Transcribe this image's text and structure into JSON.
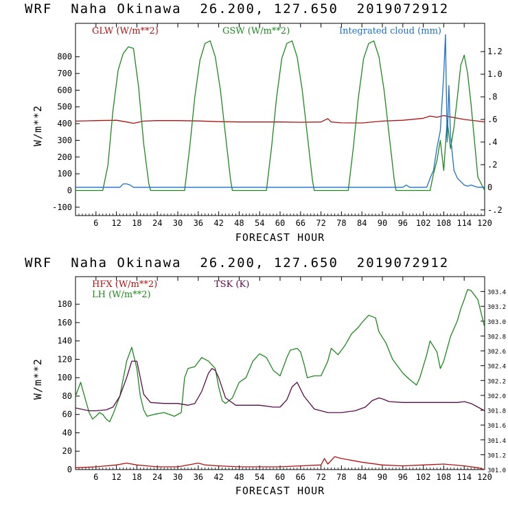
{
  "panels": [
    {
      "title": "WRF  Naha Okinawa  26.200, 127.650  2019072912",
      "ylabel": "W/m**2",
      "xlabel": "FORECAST HOUR",
      "legend": [
        {
          "text": "GLW (W/m**2)",
          "color": "#b01010"
        },
        {
          "text": "GSW (W/m**2)",
          "color": "#1a8a1a"
        },
        {
          "text": "Integrated cloud (mm)",
          "color": "#1a6fd0"
        }
      ]
    },
    {
      "title": "WRF  Naha Okinawa  26.200, 127.650  2019072912",
      "ylabel": "W/m**2",
      "xlabel": "FORECAST HOUR",
      "legend": [
        {
          "text": "HFX (W/m**2)",
          "color": "#b01010"
        },
        {
          "text": "LH  (W/m**2)",
          "color": "#1a8a1a"
        },
        {
          "text": "TSK (K)",
          "color": "#5a0a4a"
        }
      ]
    }
  ],
  "chart_data": [
    {
      "type": "line",
      "title": "WRF  Naha Okinawa  26.200, 127.650  2019072912",
      "xlabel": "FORECAST HOUR",
      "ylabel": "W/m**2",
      "xlim": [
        0,
        120
      ],
      "ylim": [
        -150,
        1000
      ],
      "y2lim": [
        -0.25,
        1.45
      ],
      "x_ticks": [
        6,
        12,
        18,
        24,
        30,
        36,
        42,
        48,
        54,
        60,
        66,
        72,
        78,
        84,
        90,
        96,
        102,
        108,
        114,
        120
      ],
      "y_ticks": [
        -100,
        0,
        100,
        200,
        300,
        400,
        500,
        600,
        700,
        800
      ],
      "y2_ticks": [
        "-.2",
        "0",
        ".2",
        ".4",
        ".6",
        ".8",
        "1.0",
        "1.2"
      ],
      "series": [
        {
          "name": "GLW (W/m**2)",
          "axis": "left",
          "color": "#b01010",
          "x": [
            0,
            6,
            12,
            15,
            17,
            20,
            24,
            30,
            36,
            42,
            48,
            54,
            60,
            66,
            72,
            74,
            75,
            76,
            78,
            84,
            90,
            96,
            102,
            104,
            106,
            108,
            110,
            114,
            118,
            120
          ],
          "y": [
            415,
            418,
            420,
            410,
            402,
            415,
            418,
            418,
            416,
            412,
            410,
            410,
            410,
            408,
            410,
            430,
            410,
            408,
            405,
            404,
            415,
            420,
            432,
            445,
            438,
            448,
            440,
            425,
            415,
            410
          ]
        },
        {
          "name": "GSW (W/m**2)",
          "axis": "left",
          "color": "#1a8a1a",
          "x": [
            0,
            8,
            9.5,
            11,
            12.5,
            14,
            15.5,
            17,
            18.5,
            20,
            21.5,
            22,
            32,
            33.5,
            35,
            36.5,
            38,
            39.5,
            41,
            42.5,
            44,
            45.5,
            46,
            56,
            57.5,
            59,
            60.5,
            62,
            63.5,
            65,
            66.5,
            68,
            69.5,
            70,
            80,
            81.5,
            83,
            84.5,
            86,
            87.5,
            89,
            90.5,
            92,
            93.5,
            94,
            104,
            105,
            106,
            107,
            108,
            109,
            110,
            111,
            112,
            113,
            114,
            115,
            116,
            117,
            118,
            120
          ],
          "y": [
            0,
            0,
            150,
            480,
            720,
            820,
            860,
            850,
            620,
            280,
            40,
            0,
            0,
            260,
            560,
            780,
            880,
            895,
            800,
            600,
            330,
            60,
            0,
            0,
            260,
            560,
            790,
            880,
            895,
            800,
            600,
            330,
            60,
            0,
            0,
            260,
            560,
            790,
            880,
            895,
            800,
            600,
            330,
            60,
            0,
            0,
            100,
            180,
            300,
            120,
            420,
            250,
            380,
            560,
            750,
            810,
            700,
            520,
            300,
            80,
            0
          ]
        },
        {
          "name": "Integrated cloud (mm)",
          "axis": "right",
          "color": "#1a6fd0",
          "x": [
            0,
            13,
            14,
            15,
            16,
            17,
            96,
            97,
            98,
            103,
            104,
            105,
            106,
            107,
            108,
            108.5,
            109,
            109.5,
            110,
            111,
            112,
            113,
            114,
            115,
            116,
            117,
            118,
            120
          ],
          "y": [
            0,
            0,
            0.03,
            0.03,
            0.02,
            0,
            0,
            0.02,
            0,
            0,
            0.08,
            0.15,
            0.35,
            0.5,
            1.0,
            1.35,
            0.4,
            0.9,
            0.45,
            0.15,
            0.08,
            0.05,
            0.02,
            0.01,
            0.02,
            0.01,
            0,
            0
          ]
        }
      ]
    },
    {
      "type": "line",
      "title": "WRF  Naha Okinawa  26.200, 127.650  2019072912",
      "xlabel": "FORECAST HOUR",
      "ylabel": "W/m**2",
      "xlim": [
        0,
        120
      ],
      "ylim": [
        0,
        210
      ],
      "y2lim": [
        301.0,
        303.6
      ],
      "x_ticks": [
        6,
        12,
        18,
        24,
        30,
        36,
        42,
        48,
        54,
        60,
        66,
        72,
        78,
        84,
        90,
        96,
        102,
        108,
        114,
        120
      ],
      "y_ticks": [
        0,
        20,
        40,
        60,
        80,
        100,
        120,
        140,
        160,
        180
      ],
      "y2_ticks": [
        "301.0",
        "301.2",
        "301.4",
        "301.6",
        "301.8",
        "302.0",
        "302.2",
        "302.4",
        "302.6",
        "302.8",
        "303.0",
        "303.2",
        "303.4"
      ],
      "series": [
        {
          "name": "HFX (W/m**2)",
          "axis": "left",
          "color": "#b01010",
          "x": [
            0,
            6,
            12,
            15,
            18,
            24,
            30,
            36,
            38,
            42,
            48,
            54,
            60,
            66,
            72,
            73,
            74,
            76,
            78,
            84,
            90,
            96,
            102,
            108,
            114,
            118,
            120
          ],
          "y": [
            2,
            3,
            5,
            7,
            5,
            3,
            3,
            7,
            5,
            4,
            3,
            3,
            3,
            4,
            5,
            12,
            6,
            14,
            12,
            8,
            5,
            4,
            5,
            6,
            4,
            2,
            0
          ]
        },
        {
          "name": "LH  (W/m**2)",
          "axis": "left",
          "color": "#1a8a1a",
          "x": [
            0,
            1.5,
            3,
            4,
            5,
            6,
            7,
            8,
            9,
            10,
            11,
            13,
            15,
            16.5,
            18,
            19,
            20,
            21,
            23,
            26,
            29,
            31,
            32,
            33,
            35,
            37,
            39,
            41,
            42,
            43,
            44,
            46,
            48,
            50,
            52,
            54,
            56,
            58,
            60,
            62,
            63,
            65,
            66,
            67,
            68,
            70,
            72,
            74,
            75,
            77,
            79,
            81,
            83,
            84,
            86,
            88,
            89,
            91,
            93,
            95,
            96,
            98,
            100,
            101,
            103,
            104,
            106,
            107,
            108,
            110,
            112,
            113,
            114,
            115,
            116,
            117,
            118,
            119,
            120
          ],
          "y": [
            80,
            95,
            75,
            62,
            55,
            58,
            62,
            60,
            55,
            52,
            60,
            80,
            118,
            133,
            110,
            80,
            65,
            58,
            60,
            62,
            58,
            62,
            100,
            110,
            112,
            122,
            118,
            110,
            90,
            75,
            72,
            78,
            95,
            100,
            118,
            126,
            122,
            108,
            102,
            122,
            130,
            132,
            128,
            115,
            100,
            102,
            102,
            118,
            132,
            125,
            135,
            148,
            155,
            160,
            168,
            165,
            150,
            138,
            120,
            110,
            105,
            98,
            92,
            100,
            125,
            140,
            128,
            110,
            118,
            145,
            162,
            175,
            185,
            196,
            195,
            190,
            185,
            170,
            155
          ]
        },
        {
          "name": "TSK (K)",
          "axis": "left",
          "color": "#5a0a4a",
          "x": [
            0,
            4,
            6,
            9,
            11,
            13,
            15,
            16.5,
            18,
            19,
            20,
            22,
            26,
            30,
            33,
            35,
            37,
            39,
            40,
            41,
            42,
            44,
            47,
            50,
            54,
            58,
            60,
            62,
            63.5,
            65,
            67,
            70,
            72,
            74,
            76,
            78,
            82,
            85,
            87,
            89,
            90,
            92,
            96,
            100,
            104,
            108,
            112,
            114,
            116,
            118,
            120
          ],
          "y": [
            67,
            64,
            64,
            65,
            68,
            80,
            100,
            118,
            118,
            100,
            82,
            73,
            72,
            72,
            70,
            72,
            85,
            105,
            110,
            108,
            100,
            78,
            70,
            70,
            70,
            68,
            68,
            76,
            90,
            95,
            80,
            66,
            64,
            62,
            62,
            62,
            64,
            68,
            75,
            78,
            77,
            74,
            73,
            73,
            73,
            73,
            73,
            74,
            72,
            68,
            64
          ]
        }
      ]
    }
  ]
}
